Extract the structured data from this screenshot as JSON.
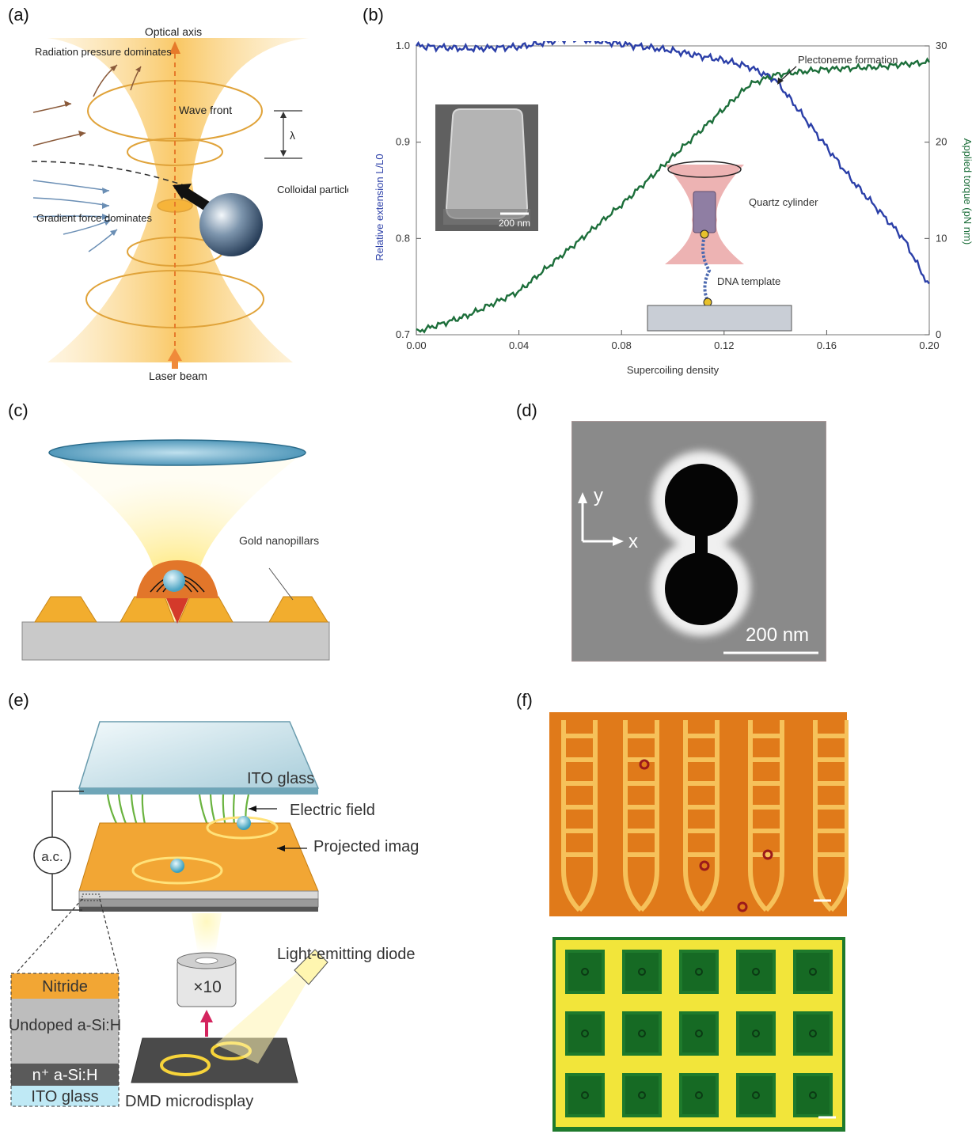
{
  "panels": {
    "a": {
      "label": "(a)"
    },
    "b": {
      "label": "(b)"
    },
    "c": {
      "label": "(c)"
    },
    "d": {
      "label": "(d)"
    },
    "e": {
      "label": "(e)"
    },
    "f": {
      "label": "(f)"
    }
  },
  "panel_a": {
    "optical_axis": "Optical axis",
    "radiation": "Radiation pressure dominates",
    "wave_front": "Wave front",
    "lambda": "λ",
    "colloidal": "Colloidal particle",
    "gradient": "Gradient force dominates",
    "laser": "Laser beam"
  },
  "panel_c": {
    "gold": "Gold nanopillars"
  },
  "panel_d": {
    "axis_y": "y",
    "axis_x": "x",
    "scale": "200 nm"
  },
  "panel_e": {
    "ito_top": "ITO glass",
    "efield": "Electric field",
    "ac": "a.c.",
    "projected": "Projected image",
    "led": "Light-emitting diode",
    "objective": "×10",
    "dmd": "DMD microdisplay",
    "layers": [
      "Nitride",
      "Undoped a-Si:H",
      "n⁺ a-Si:H",
      "ITO glass"
    ]
  },
  "chart_data": {
    "type": "line",
    "xlabel": "Supercoiling density",
    "ylabel": "Relative extension L/L0",
    "ylabel_right": "Applied torque (pN nm)",
    "xlim": [
      0,
      0.2
    ],
    "ylim": [
      0.7,
      1.0
    ],
    "ylim_right": [
      0,
      30
    ],
    "xticks": [
      "0.00",
      "0.04",
      "0.08",
      "0.12",
      "0.16",
      "0.20"
    ],
    "yticks": [
      "0.7",
      "0.8",
      "0.9",
      "1.0"
    ],
    "yticks_right": [
      "0",
      "10",
      "20",
      "30"
    ],
    "annotation": "Plectoneme formation",
    "inset_scale": "200 nm",
    "inset_labels": [
      "Quartz cylinder",
      "DNA template"
    ],
    "series": [
      {
        "axis": "left",
        "color": "#2b3fa8",
        "x": [
          0.0,
          0.02,
          0.04,
          0.06,
          0.08,
          0.1,
          0.12,
          0.13,
          0.14,
          0.15,
          0.16,
          0.17,
          0.18,
          0.19,
          0.2
        ],
        "y": [
          1.0,
          0.997,
          0.999,
          1.008,
          1.002,
          0.995,
          0.985,
          0.978,
          0.965,
          0.93,
          0.895,
          0.86,
          0.83,
          0.8,
          0.75
        ]
      },
      {
        "axis": "right",
        "color": "#1c6e3a",
        "x": [
          0.0,
          0.02,
          0.04,
          0.06,
          0.08,
          0.1,
          0.12,
          0.13,
          0.14,
          0.15,
          0.16,
          0.17,
          0.18,
          0.19,
          0.2
        ],
        "y": [
          0.3,
          2.0,
          4.5,
          9.0,
          13.5,
          18.5,
          23.5,
          26.0,
          27.0,
          27.3,
          27.6,
          27.7,
          27.8,
          28.1,
          28.3
        ]
      }
    ]
  }
}
